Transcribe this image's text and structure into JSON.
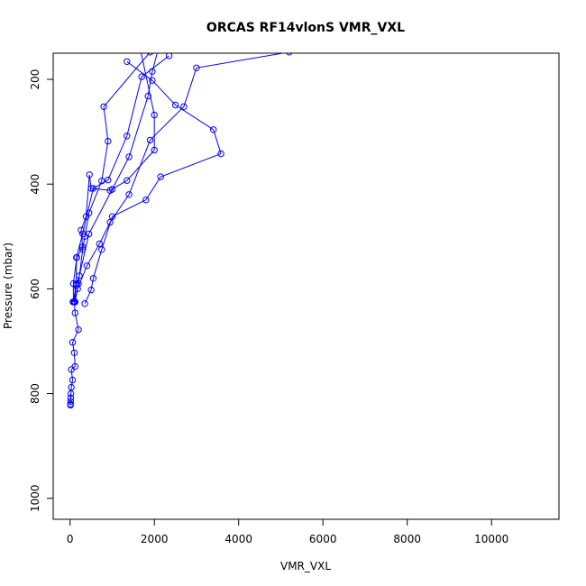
{
  "chart_data": {
    "type": "line",
    "title": "ORCAS RF14vlonS VMR_VXL",
    "xlabel": "VMR_VXL",
    "ylabel": "Pressure (mbar)",
    "xlim": [
      -400,
      11600
    ],
    "ylim": [
      1040,
      150
    ],
    "y_reversed": true,
    "grid": false,
    "legend": "none",
    "x_ticks": [
      0,
      2000,
      4000,
      6000,
      8000,
      10000
    ],
    "x_tick_labels": [
      "0",
      "2000",
      "4000",
      "6000",
      "8000",
      "10000"
    ],
    "y_ticks": [
      200,
      400,
      600,
      800,
      1000
    ],
    "y_tick_labels": [
      "200",
      "400",
      "600",
      "800",
      "1000"
    ],
    "color": "#0000ff",
    "series": [
      {
        "points": [
          [
            5200,
            148
          ],
          [
            3000,
            178
          ],
          [
            2700,
            252
          ],
          [
            1900,
            316
          ],
          [
            1400,
            420
          ],
          [
            950,
            473
          ],
          [
            700,
            514
          ],
          [
            400,
            556
          ],
          [
            180,
            600
          ],
          [
            100,
            625
          ],
          [
            120,
            646
          ],
          [
            200,
            678
          ],
          [
            60,
            702
          ],
          [
            100,
            722
          ],
          [
            120,
            748
          ],
          [
            30,
            754
          ],
          [
            60,
            774
          ],
          [
            30,
            788
          ],
          [
            20,
            800
          ],
          [
            15,
            808
          ],
          [
            15,
            815
          ],
          [
            10,
            820
          ],
          [
            10,
            822
          ]
        ]
      },
      {
        "points": [
          [
            2350,
            155
          ],
          [
            1700,
            195
          ],
          [
            1350,
            308
          ],
          [
            900,
            392
          ],
          [
            550,
            408
          ],
          [
            300,
            495
          ],
          [
            150,
            540
          ],
          [
            150,
            590
          ],
          [
            100,
            625
          ]
        ]
      },
      {
        "points": [
          [
            2100,
            140
          ],
          [
            1950,
            185
          ],
          [
            1850,
            232
          ],
          [
            1400,
            348
          ],
          [
            1000,
            410
          ],
          [
            450,
            495
          ],
          [
            220,
            575
          ],
          [
            150,
            593
          ],
          [
            70,
            625
          ]
        ]
      },
      {
        "points": [
          [
            1350,
            166
          ],
          [
            1950,
            202
          ],
          [
            2500,
            249
          ],
          [
            3400,
            296
          ],
          [
            3580,
            342
          ],
          [
            2150,
            386
          ],
          [
            1800,
            430
          ],
          [
            1000,
            462
          ],
          [
            750,
            525
          ],
          [
            550,
            580
          ],
          [
            500,
            602
          ],
          [
            350,
            628
          ]
        ]
      },
      {
        "points": [
          [
            1900,
            148
          ],
          [
            800,
            252
          ],
          [
            900,
            318
          ],
          [
            750,
            394
          ],
          [
            450,
            455
          ],
          [
            350,
            500
          ],
          [
            300,
            525
          ],
          [
            200,
            590
          ],
          [
            120,
            625
          ]
        ]
      },
      {
        "points": [
          [
            1650,
            135
          ],
          [
            2000,
            268
          ],
          [
            2000,
            335
          ],
          [
            1350,
            393
          ],
          [
            950,
            412
          ],
          [
            500,
            408
          ],
          [
            460,
            382
          ],
          [
            380,
            462
          ],
          [
            260,
            488
          ],
          [
            300,
            520
          ],
          [
            160,
            540
          ],
          [
            80,
            590
          ],
          [
            80,
            625
          ]
        ]
      }
    ]
  }
}
